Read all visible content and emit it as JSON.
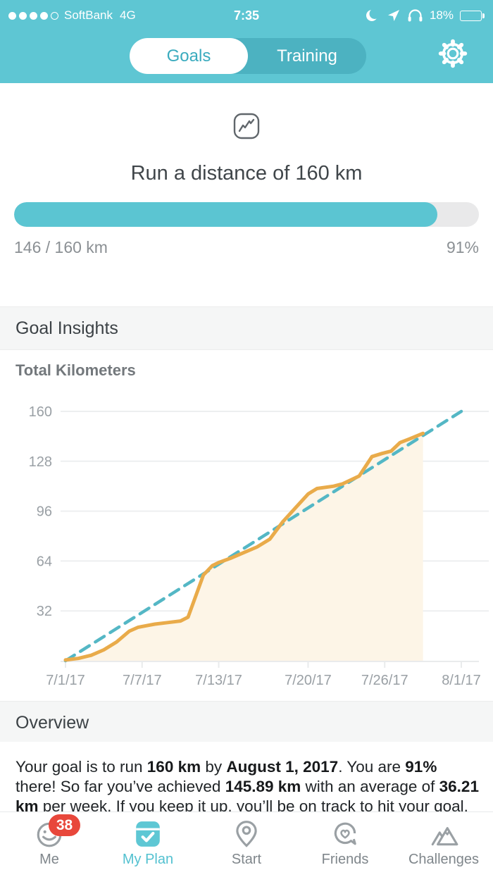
{
  "colors": {
    "header_teal": "#5ec6d3",
    "segment_bg": "#4cb2c1",
    "segment_active_text": "#3aabbe",
    "progress_fill": "#5bc5d2",
    "progress_track": "#e9e9ea",
    "section_bg": "#f5f6f6",
    "actual_line": "#e9ab4a",
    "actual_fill": "#fdf5e7",
    "target_line": "#54b7c5",
    "grid": "#edeff0",
    "axis_text": "#9aa0a5",
    "badge_red": "#e8473b",
    "battery_red": "#f04f3a",
    "tab_active": "#53c1d0"
  },
  "status_bar": {
    "carrier": "SoftBank",
    "network": "4G",
    "time": "7:35",
    "battery_percent": "18%",
    "icons": [
      "moon-icon",
      "location-arrow-icon",
      "headphones-icon",
      "battery-icon"
    ]
  },
  "header": {
    "tabs": [
      {
        "label": "Goals",
        "active": true
      },
      {
        "label": "Training",
        "active": false
      }
    ],
    "settings_icon": "gear-icon"
  },
  "goal": {
    "icon": "trend-chart-icon",
    "title": "Run a distance of 160 km",
    "progress_label": "146 / 160 km",
    "percent_label": "91%",
    "percent": 91
  },
  "sections": {
    "insights": "Goal Insights",
    "overview": "Overview"
  },
  "chart_data": {
    "type": "line",
    "title": "Total Kilometers",
    "xlabel": "",
    "ylabel": "",
    "ylim": [
      0,
      160
    ],
    "xlim_days": [
      0,
      31
    ],
    "grid": true,
    "y_ticks": [
      32,
      64,
      96,
      128,
      160
    ],
    "x_tick_days": [
      0,
      6,
      12,
      19,
      25,
      31
    ],
    "x_tick_labels": [
      "7/1/17",
      "7/7/17",
      "7/13/17",
      "7/20/17",
      "7/26/17",
      "8/1/17"
    ],
    "series": [
      {
        "name": "Actual kilometers",
        "style": "solid",
        "color": "#e9ab4a",
        "fill": "#fdf5e7",
        "points": [
          [
            0,
            0.5
          ],
          [
            1,
            1.5
          ],
          [
            2,
            3.5
          ],
          [
            3,
            7
          ],
          [
            4,
            12
          ],
          [
            5,
            19
          ],
          [
            5.7,
            21.5
          ],
          [
            7,
            23.5
          ],
          [
            8,
            24.5
          ],
          [
            9,
            25.5
          ],
          [
            9.6,
            28
          ],
          [
            10.8,
            55
          ],
          [
            11.5,
            61
          ],
          [
            12,
            63
          ],
          [
            13,
            66
          ],
          [
            14,
            69.5
          ],
          [
            15,
            73
          ],
          [
            16,
            78
          ],
          [
            17,
            89
          ],
          [
            18,
            98
          ],
          [
            19,
            107
          ],
          [
            19.7,
            110.5
          ],
          [
            21,
            112
          ],
          [
            21.7,
            113.5
          ],
          [
            23,
            118.5
          ],
          [
            24,
            131
          ],
          [
            24.8,
            133
          ],
          [
            25.5,
            134.5
          ],
          [
            26.2,
            140
          ],
          [
            27,
            142.5
          ],
          [
            28,
            145.89
          ]
        ]
      },
      {
        "name": "Target pace",
        "style": "dashed",
        "color": "#54b7c5",
        "points": [
          [
            0,
            0
          ],
          [
            31,
            160
          ]
        ]
      }
    ]
  },
  "overview": {
    "segments": [
      {
        "text": "Your goal is to run ",
        "bold": false
      },
      {
        "text": "160 km",
        "bold": true
      },
      {
        "text": " by ",
        "bold": false
      },
      {
        "text": "August 1, 2017",
        "bold": true
      },
      {
        "text": ". You are ",
        "bold": false
      },
      {
        "text": "91%",
        "bold": true
      },
      {
        "text": " there! So far you’ve achieved ",
        "bold": false
      },
      {
        "text": "145.89 km",
        "bold": true
      },
      {
        "text": " with an average of ",
        "bold": false
      },
      {
        "text": "36.21 km",
        "bold": true
      },
      {
        "text": " per week. If you keep it up, you’ll be on track to hit your goal.",
        "bold": false
      }
    ]
  },
  "tab_bar": {
    "items": [
      {
        "label": "Me",
        "icon": "smiley-icon",
        "badge": "38",
        "active": false
      },
      {
        "label": "My Plan",
        "icon": "plan-check-icon",
        "active": true
      },
      {
        "label": "Start",
        "icon": "location-pin-icon",
        "active": false
      },
      {
        "label": "Friends",
        "icon": "chat-heart-icon",
        "active": false
      },
      {
        "label": "Challenges",
        "icon": "mountains-icon",
        "active": false
      }
    ]
  }
}
